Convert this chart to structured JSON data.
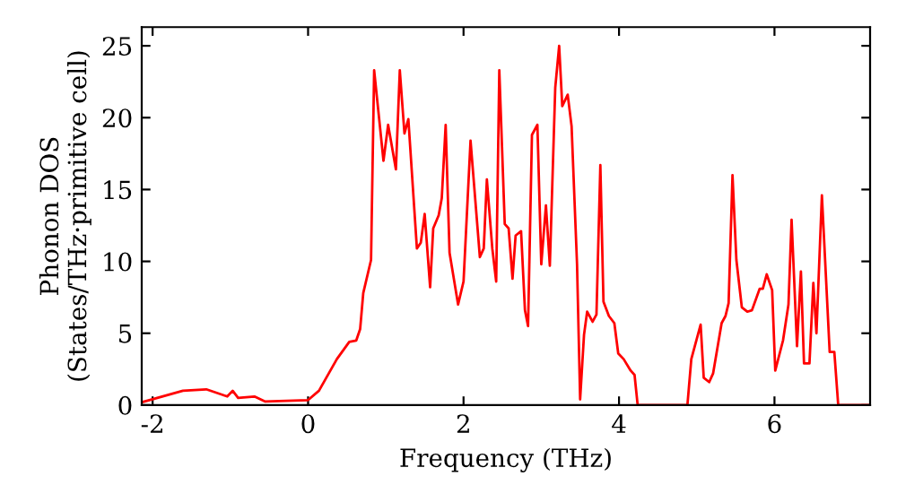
{
  "chart_data": {
    "type": "line",
    "xlabel": "Frequency (THz)",
    "ylabel": "Phonon DOS\n(States/THz·primitive cell)",
    "xlim": [
      -2.14,
      7.23
    ],
    "ylim": [
      0,
      26.3
    ],
    "xticks": [
      -2,
      0,
      2,
      4,
      6
    ],
    "yticks": [
      0,
      5,
      10,
      15,
      20,
      25
    ],
    "grid": false,
    "legend": false,
    "marker": "none",
    "line_style": "solid",
    "series": [
      {
        "color": "#ff0000",
        "x": [
          -2.14,
          -1.61,
          -1.31,
          -1.04,
          -0.97,
          -0.9,
          -0.69,
          -0.55,
          0,
          0.14,
          0.37,
          0.53,
          0.62,
          0.67,
          0.71,
          0.81,
          0.85,
          0.97,
          1.03,
          1.13,
          1.18,
          1.24,
          1.29,
          1.4,
          1.45,
          1.5,
          1.57,
          1.61,
          1.68,
          1.72,
          1.77,
          1.82,
          1.93,
          2.0,
          2.09,
          2.21,
          2.26,
          2.3,
          2.37,
          2.42,
          2.46,
          2.53,
          2.58,
          2.63,
          2.67,
          2.74,
          2.79,
          2.83,
          2.88,
          2.95,
          3.0,
          3.06,
          3.11,
          3.18,
          3.23,
          3.27,
          3.34,
          3.39,
          3.46,
          3.5,
          3.55,
          3.59,
          3.66,
          3.71,
          3.76,
          3.8,
          3.87,
          3.94,
          3.99,
          4.06,
          4.15,
          4.2,
          4.24,
          4.88,
          4.93,
          5.05,
          5.09,
          5.16,
          5.21,
          5.32,
          5.37,
          5.41,
          5.46,
          5.51,
          5.58,
          5.65,
          5.71,
          5.81,
          5.85,
          5.9,
          5.97,
          6.01,
          6.11,
          6.18,
          6.22,
          6.29,
          6.34,
          6.38,
          6.45,
          6.5,
          6.54,
          6.61,
          6.71,
          6.77,
          6.82,
          7.23
        ],
        "values": [
          0.2,
          1.0,
          1.1,
          0.6,
          1.0,
          0.5,
          0.6,
          0.25,
          0.35,
          1.0,
          3.2,
          4.4,
          4.5,
          5.3,
          7.8,
          10.1,
          23.3,
          17,
          19.5,
          16.4,
          23.3,
          18.9,
          19.9,
          10.9,
          11.3,
          13.3,
          8.2,
          12.3,
          13.2,
          14.4,
          19.5,
          10.6,
          7.0,
          8.6,
          18.4,
          10.3,
          10.9,
          15.7,
          10.9,
          8.6,
          23.3,
          12.6,
          12.3,
          8.8,
          11.8,
          12.1,
          6.6,
          5.5,
          18.8,
          19.5,
          9.8,
          13.9,
          9.7,
          22.1,
          25,
          20.8,
          21.6,
          19.4,
          9.8,
          0.4,
          4.9,
          6.5,
          5.8,
          6.3,
          16.7,
          7.2,
          6.2,
          5.7,
          3.6,
          3.2,
          2.4,
          2.1,
          0,
          0,
          3.2,
          5.6,
          1.9,
          1.6,
          2.2,
          5.7,
          6.2,
          7.1,
          16.0,
          10.1,
          6.8,
          6.5,
          6.6,
          8.1,
          8.1,
          9.1,
          8.0,
          2.4,
          4.5,
          7.0,
          12.9,
          4.1,
          9.3,
          2.9,
          2.9,
          8.5,
          5.0,
          14.6,
          3.7,
          3.7,
          0,
          0
        ]
      }
    ]
  }
}
